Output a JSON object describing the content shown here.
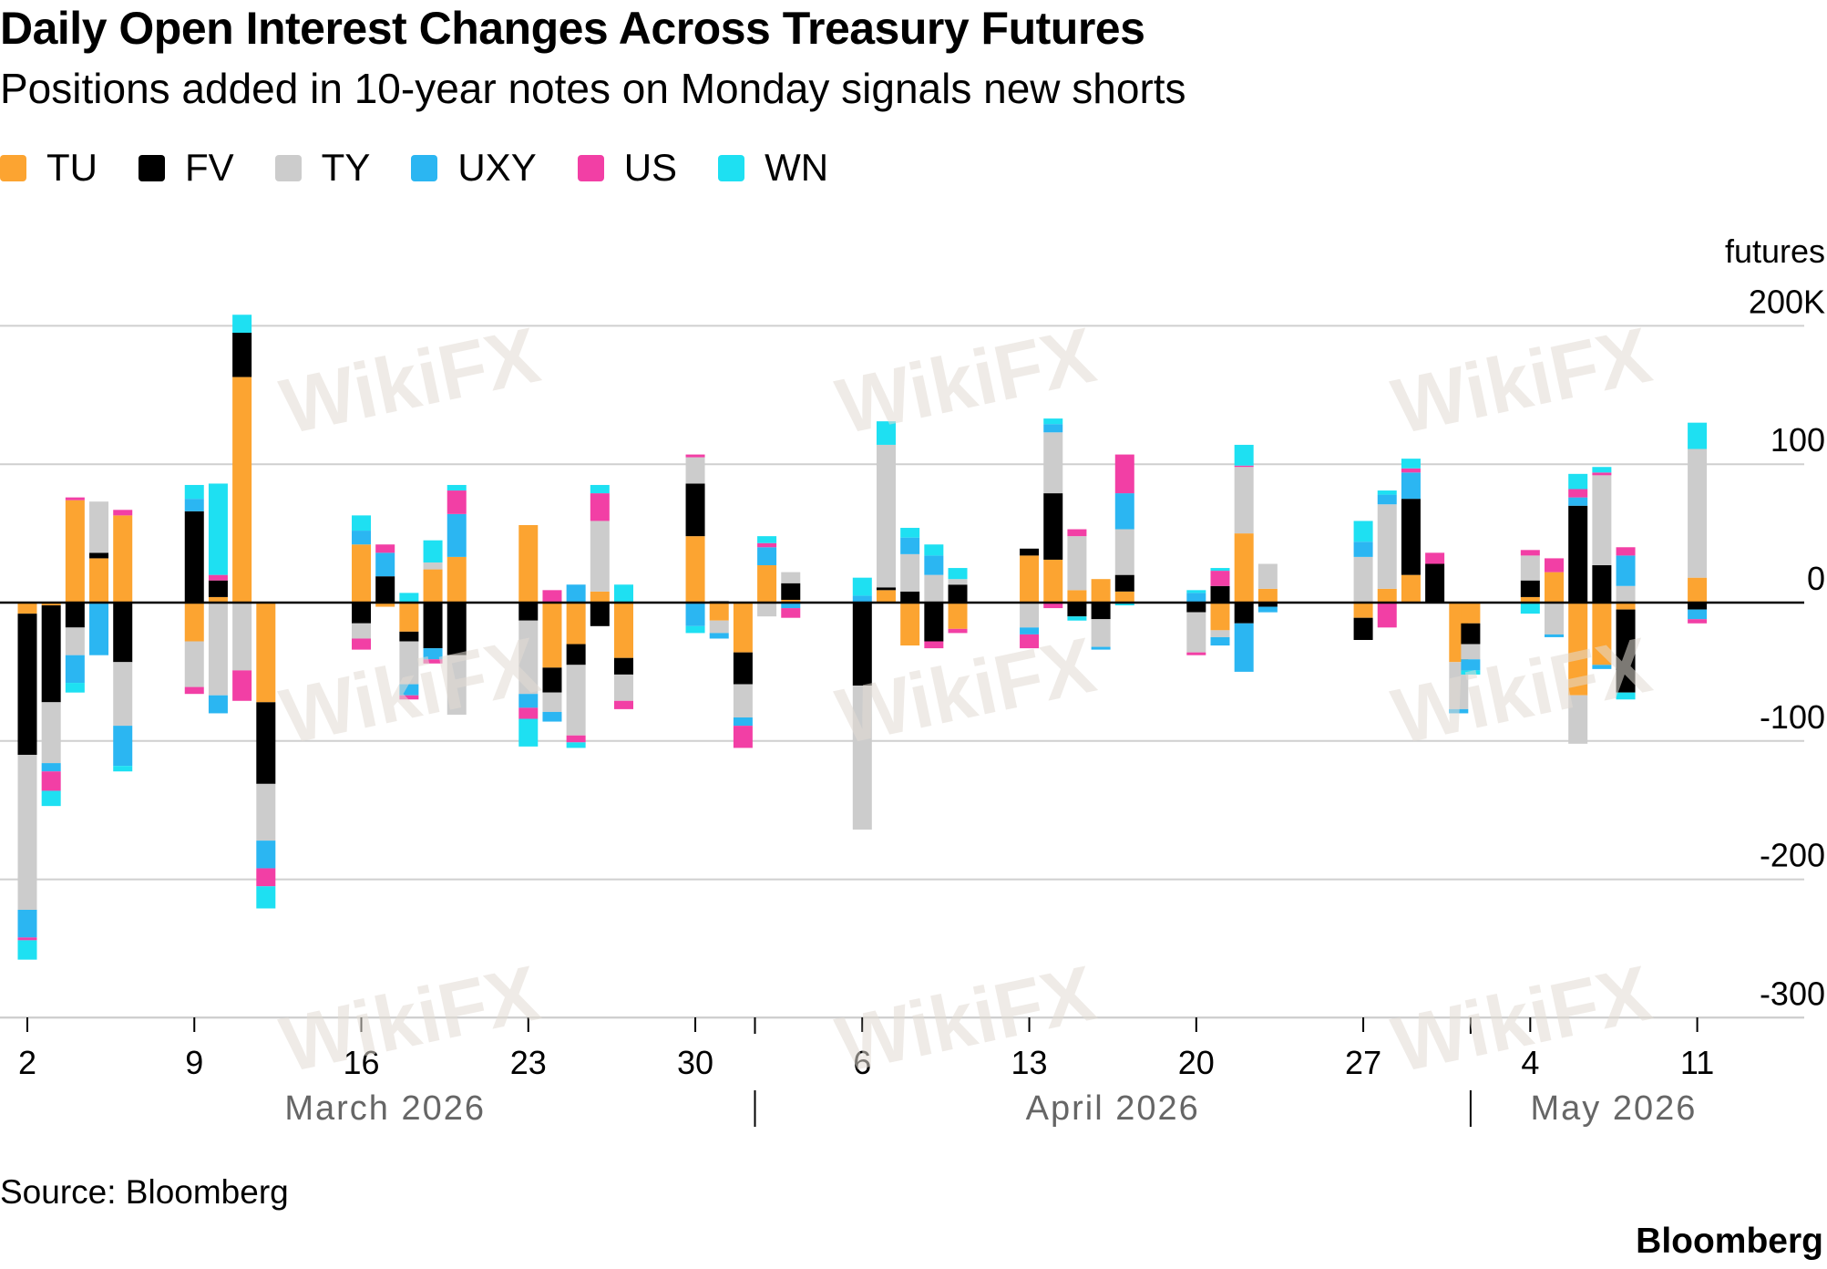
{
  "title": "Daily Open Interest Changes Across Treasury Futures",
  "subtitle": "Positions added in 10-year notes on Monday signals new shorts",
  "legend": [
    {
      "label": "TU",
      "color": "#fca431"
    },
    {
      "label": "FV",
      "color": "#000000"
    },
    {
      "label": "TY",
      "color": "#cccccc"
    },
    {
      "label": "UXY",
      "color": "#2bb6f2"
    },
    {
      "label": "US",
      "color": "#f23fa5"
    },
    {
      "label": "WN",
      "color": "#1ee0f2"
    }
  ],
  "source": "Source: Bloomberg",
  "brand": "Bloomberg",
  "watermark": "WikiFX",
  "chart_data": {
    "type": "bar",
    "stacked": true,
    "ylabel": "futures",
    "y_ticks": [
      {
        "value": 200,
        "label": "200K"
      },
      {
        "value": 100,
        "label": "100"
      },
      {
        "value": 0,
        "label": "0"
      },
      {
        "value": -100,
        "label": "-100"
      },
      {
        "value": -200,
        "label": "-200"
      },
      {
        "value": -300,
        "label": "-300"
      }
    ],
    "ylim": [
      -300,
      200
    ],
    "x_ticks": [
      {
        "day": 1,
        "label": "2"
      },
      {
        "day": 8,
        "label": "9"
      },
      {
        "day": 15,
        "label": "16"
      },
      {
        "day": 22,
        "label": "23"
      },
      {
        "day": 29,
        "label": "30"
      },
      {
        "day": 36,
        "label": "6"
      },
      {
        "day": 43,
        "label": "13"
      },
      {
        "day": 50,
        "label": "20"
      },
      {
        "day": 57,
        "label": "27"
      },
      {
        "day": 64,
        "label": "4"
      },
      {
        "day": 71,
        "label": "11"
      }
    ],
    "month_labels": [
      {
        "label": "March 2026",
        "day": 15
      },
      {
        "label": "April 2026",
        "day": 45.5
      },
      {
        "label": "May 2026",
        "day": 66.5
      }
    ],
    "month_dividers": [
      30.5,
      60.5
    ],
    "series_names": [
      "TU",
      "FV",
      "TY",
      "UXY",
      "US",
      "WN"
    ],
    "days": [
      {
        "date": "Mar 2",
        "TU": -8,
        "FV": -102,
        "TY": -112,
        "UXY": -20,
        "US": -2,
        "WN": -14
      },
      {
        "date": "Mar 3",
        "TU": -2,
        "FV": -70,
        "TY": -44,
        "UXY": -6,
        "US": -14,
        "WN": -11
      },
      {
        "date": "Mar 4",
        "TU": 74,
        "FV": -18,
        "TY": -20,
        "UXY": -20,
        "US": 2,
        "WN": -7
      },
      {
        "date": "Mar 5",
        "TU": 32,
        "FV": 4,
        "TY": 37,
        "UXY": -38,
        "US": 0,
        "WN": 0
      },
      {
        "date": "Mar 6",
        "TU": 63,
        "FV": -43,
        "TY": -46,
        "UXY": -29,
        "US": 4,
        "WN": -4
      },
      {
        "date": "Mar 9",
        "TU": -28,
        "FV": 66,
        "TY": -33,
        "UXY": 9,
        "US": -5,
        "WN": 10
      },
      {
        "date": "Mar 10",
        "TU": 4,
        "FV": 12,
        "TY": -67,
        "UXY": -13,
        "US": 4,
        "WN": 66
      },
      {
        "date": "Mar 11",
        "TU": 163,
        "FV": 32,
        "TY": -49,
        "US": -22,
        "UXY": 0,
        "WN": 13
      },
      {
        "date": "Mar 12",
        "TU": -72,
        "FV": -59,
        "TY": -41,
        "UXY": -20,
        "US": -13,
        "WN": -16
      },
      {
        "date": "Mar 16",
        "TU": 42,
        "FV": -15,
        "TY": -11,
        "UXY": 10,
        "US": -8,
        "WN": 11
      },
      {
        "date": "Mar 17",
        "TU": -3,
        "FV": 19,
        "TY": 0,
        "UXY": 17,
        "US": 6,
        "WN": 0
      },
      {
        "date": "Mar 18",
        "TU": -21,
        "FV": -7,
        "TY": -31,
        "UXY": -8,
        "US": -3,
        "WN": 7
      },
      {
        "date": "Mar 19",
        "TU": 24,
        "FV": -33,
        "TY": 5,
        "UXY": -8,
        "US": -3,
        "WN": 16
      },
      {
        "date": "Mar 20",
        "TU": 33,
        "FV": -38,
        "TY": -43,
        "UXY": 31,
        "US": 17,
        "WN": 4
      },
      {
        "date": "Mar 23",
        "TU": 56,
        "FV": -13,
        "TY": -53,
        "UXY": -10,
        "US": -8,
        "WN": -20
      },
      {
        "date": "Mar 24",
        "TU": -47,
        "FV": -18,
        "TY": -14,
        "UXY": -7,
        "US": 9,
        "WN": 0
      },
      {
        "date": "Mar 25",
        "TU": -30,
        "FV": -15,
        "TY": -51,
        "UXY": 13,
        "US": -5,
        "WN": -4
      },
      {
        "date": "Mar 26",
        "TU": 8,
        "FV": -17,
        "TY": 51,
        "UXY": 0,
        "US": 20,
        "WN": 6
      },
      {
        "date": "Mar 27",
        "TU": -40,
        "FV": -12,
        "TY": -19,
        "UXY": 0,
        "US": -6,
        "WN": 13
      },
      {
        "date": "Mar 30",
        "TU": 48,
        "FV": 38,
        "TY": 19,
        "UXY": -17,
        "US": 2,
        "WN": -5
      },
      {
        "date": "Mar 31",
        "TU": -13,
        "FV": 1,
        "TY": -9,
        "UXY": -4,
        "US": 0,
        "WN": 0
      },
      {
        "date": "Apr 1",
        "TU": -36,
        "FV": -23,
        "TY": -24,
        "UXY": -6,
        "US": -16,
        "WN": 0
      },
      {
        "date": "Apr 2",
        "TU": 27,
        "FV": 0,
        "TY": -10,
        "UXY": 13,
        "US": 3,
        "WN": 5
      },
      {
        "date": "Apr 3",
        "TU": 2,
        "FV": 12,
        "TY": 8,
        "UXY": -4,
        "US": -7,
        "WN": 0
      },
      {
        "date": "Apr 6",
        "TU": 0,
        "FV": -60,
        "TY": -104,
        "UXY": 5,
        "US": 0,
        "WN": 13
      },
      {
        "date": "Apr 7",
        "TU": 9,
        "FV": 2,
        "TY": 103,
        "UXY": 0,
        "US": 0,
        "WN": 17
      },
      {
        "date": "Apr 8",
        "TU": -31,
        "FV": 8,
        "TY": 27,
        "UXY": 12,
        "US": 0,
        "WN": 7
      },
      {
        "date": "Apr 9",
        "TU": 0,
        "FV": -28,
        "TY": 20,
        "UXY": 14,
        "US": -5,
        "WN": 8
      },
      {
        "date": "Apr 10",
        "TU": -19,
        "FV": 13,
        "TY": 4,
        "US": -3,
        "UXY": 0,
        "WN": 8
      },
      {
        "date": "Apr 13",
        "TU": 34,
        "FV": 5,
        "TY": -18,
        "US": -10,
        "UXY": -5,
        "WN": 0
      },
      {
        "date": "Apr 14",
        "TU": 31,
        "FV": 48,
        "TY": 44,
        "US": -4,
        "UXY": 6,
        "WN": 4
      },
      {
        "date": "Apr 15",
        "TU": 9,
        "FV": -10,
        "TY": 39,
        "US": 5,
        "UXY": 0,
        "WN": -3
      },
      {
        "date": "Apr 16",
        "TU": 17,
        "FV": -12,
        "TY": -20,
        "UXY": -2,
        "US": 0,
        "WN": 0
      },
      {
        "date": "Apr 17",
        "TU": 8,
        "FV": 12,
        "TY": 33,
        "UXY": 26,
        "US": 28,
        "WN": -2
      },
      {
        "date": "Apr 20",
        "TU": 0,
        "FV": -7,
        "TY": -29,
        "UXY": 7,
        "US": -2,
        "WN": 2
      },
      {
        "date": "Apr 21",
        "TU": -20,
        "FV": 12,
        "TY": -5,
        "UXY": -6,
        "US": 11,
        "WN": 2
      },
      {
        "date": "Apr 22",
        "TU": 50,
        "FV": -15,
        "TY": 48,
        "UXY": -35,
        "US": 1,
        "WN": 15
      },
      {
        "date": "Apr 23",
        "TU": 10,
        "FV": -3,
        "TY": 18,
        "UXY": -4,
        "US": 0,
        "WN": 0
      },
      {
        "date": "Apr 27",
        "TU": -11,
        "FV": -16,
        "TY": 33,
        "UXY": 11,
        "US": 0,
        "WN": 15
      },
      {
        "date": "Apr 28",
        "TU": 10,
        "FV": 0,
        "TY": 61,
        "UXY": 7,
        "US": -18,
        "WN": 3
      },
      {
        "date": "Apr 29",
        "TU": 20,
        "FV": 55,
        "TY": 0,
        "UXY": 19,
        "US": 3,
        "WN": 7
      },
      {
        "date": "Apr 30",
        "TU": 0,
        "FV": 28,
        "TY": 0,
        "US": 8,
        "UXY": 0,
        "WN": 0
      },
      {
        "date": "May 1",
        "TU": -43,
        "FV": 0,
        "TY": -34,
        "UXY": -3,
        "US": 0,
        "WN": 0
      },
      {
        "date": "May 1b",
        "TU": -15,
        "FV": -15,
        "TY": -11,
        "UXY": -8,
        "US": 0,
        "WN": -3
      },
      {
        "date": "May 4",
        "TU": 4,
        "FV": 12,
        "TY": 18,
        "US": 4,
        "UXY": 0,
        "WN": -8
      },
      {
        "date": "May 5",
        "TU": 22,
        "FV": 0,
        "TY": -23,
        "US": 10,
        "UXY": -2,
        "WN": 0
      },
      {
        "date": "May 6",
        "TU": -67,
        "FV": 70,
        "TY": -35,
        "UXY": 6,
        "US": 6,
        "WN": 11
      },
      {
        "date": "May 7",
        "TU": -45,
        "FV": 27,
        "TY": 65,
        "UXY": -3,
        "US": 2,
        "WN": 4
      },
      {
        "date": "May 8",
        "TU": -5,
        "FV": -60,
        "TY": 12,
        "UXY": 22,
        "US": 6,
        "WN": -5
      },
      {
        "date": "May 11",
        "TU": 18,
        "FV": -5,
        "TY": 93,
        "UXY": -7,
        "US": -3,
        "WN": 19
      }
    ]
  }
}
